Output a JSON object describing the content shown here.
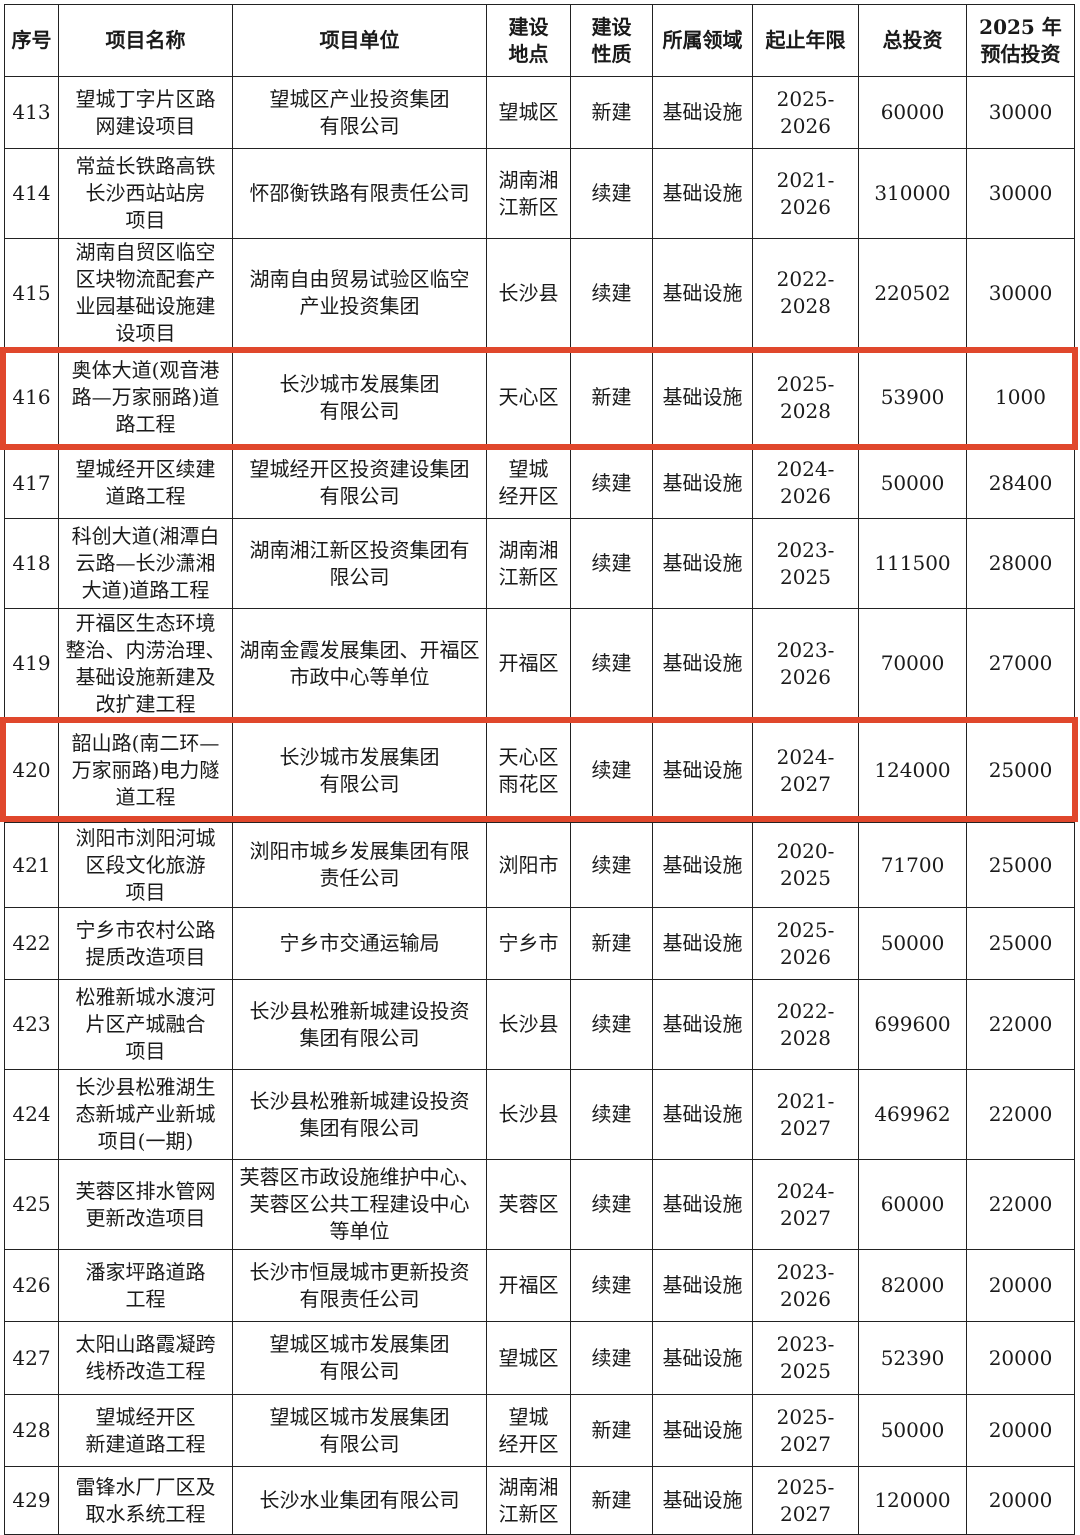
{
  "headers": [
    "序号",
    "项目名称",
    "项目单位",
    "建设\n地点",
    "建设\n性质",
    "所属领域",
    "起止年限",
    "总投资",
    "2025 年\n预估投资"
  ],
  "rows": [
    [
      "413",
      "望城丁字片区路\n网建设项目",
      "望城区产业投资集团\n有限公司",
      "望城区",
      "新建",
      "基础设施",
      "2025-2026",
      "60000",
      "30000"
    ],
    [
      "414",
      "常益长铁路高铁\n长沙西站站房\n项目",
      "怀邵衡铁路有限责任公司",
      "湖南湘\n江新区",
      "续建",
      "基础设施",
      "2021-2026",
      "310000",
      "30000"
    ],
    [
      "415",
      "湖南自贸区临空\n区块物流配套产\n业园基础设施建\n设项目",
      "湖南自由贸易试验区临空\n产业投资集团",
      "长沙县",
      "续建",
      "基础设施",
      "2022-2028",
      "220502",
      "30000"
    ],
    [
      "416",
      "奥体大道(观音港\n路—万家丽路)道\n路工程",
      "长沙城市发展集团\n有限公司",
      "天心区",
      "新建",
      "基础设施",
      "2025-2028",
      "53900",
      "1000"
    ],
    [
      "417",
      "望城经开区续建\n道路工程",
      "望城经开区投资建设集团\n有限公司",
      "望城\n经开区",
      "续建",
      "基础设施",
      "2024-2026",
      "50000",
      "28400"
    ],
    [
      "418",
      "科创大道(湘潭白\n云路—长沙潇湘\n大道)道路工程",
      "湖南湘江新区投资集团有\n限公司",
      "湖南湘\n江新区",
      "续建",
      "基础设施",
      "2023-2025",
      "111500",
      "28000"
    ],
    [
      "419",
      "开福区生态环境\n整治、内涝治理、\n基础设施新建及\n改扩建工程",
      "湖南金霞发展集团、开福区\n市政中心等单位",
      "开福区",
      "续建",
      "基础设施",
      "2023-2026",
      "70000",
      "27000"
    ],
    [
      "420",
      "韶山路(南二环—\n万家丽路)电力隧\n道工程",
      "长沙城市发展集团\n有限公司",
      "天心区\n雨花区",
      "续建",
      "基础设施",
      "2024-2027",
      "124000",
      "25000"
    ],
    [
      "421",
      "浏阳市浏阳河城\n区段文化旅游\n项目",
      "浏阳市城乡发展集团有限\n责任公司",
      "浏阳市",
      "续建",
      "基础设施",
      "2020-2025",
      "71700",
      "25000"
    ],
    [
      "422",
      "宁乡市农村公路\n提质改造项目",
      "宁乡市交通运输局",
      "宁乡市",
      "新建",
      "基础设施",
      "2025-2026",
      "50000",
      "25000"
    ],
    [
      "423",
      "松雅新城水渡河\n片区产城融合\n项目",
      "长沙县松雅新城建设投资\n集团有限公司",
      "长沙县",
      "续建",
      "基础设施",
      "2022-2028",
      "699600",
      "22000"
    ],
    [
      "424",
      "长沙县松雅湖生\n态新城产业新城\n项目(一期)",
      "长沙县松雅新城建设投资\n集团有限公司",
      "长沙县",
      "续建",
      "基础设施",
      "2021-2027",
      "469962",
      "22000"
    ],
    [
      "425",
      "芙蓉区排水管网\n更新改造项目",
      "芙蓉区市政设施维护中心、\n芙蓉区公共工程建设中心\n等单位",
      "芙蓉区",
      "续建",
      "基础设施",
      "2024-2027",
      "60000",
      "22000"
    ],
    [
      "426",
      "潘家坪路道路\n工程",
      "长沙市恒晟城市更新投资\n有限责任公司",
      "开福区",
      "续建",
      "基础设施",
      "2023-2026",
      "82000",
      "20000"
    ],
    [
      "427",
      "太阳山路霞凝跨\n线桥改造工程",
      "望城区城市发展集团\n有限公司",
      "望城区",
      "续建",
      "基础设施",
      "2023-2025",
      "52390",
      "20000"
    ],
    [
      "428",
      "望城经开区\n新建道路工程",
      "望城区城市发展集团\n有限公司",
      "望城\n经开区",
      "新建",
      "基础设施",
      "2025-2027",
      "50000",
      "20000"
    ],
    [
      "429",
      "雷锋水厂厂区及\n取水系统工程",
      "长沙水业集团有限公司",
      "湖南湘\n江新区",
      "新建",
      "基础设施",
      "2025-2027",
      "120000",
      "20000"
    ]
  ],
  "highlighted_rows": [
    "416",
    "420"
  ],
  "highlight_color": "#e0472c"
}
